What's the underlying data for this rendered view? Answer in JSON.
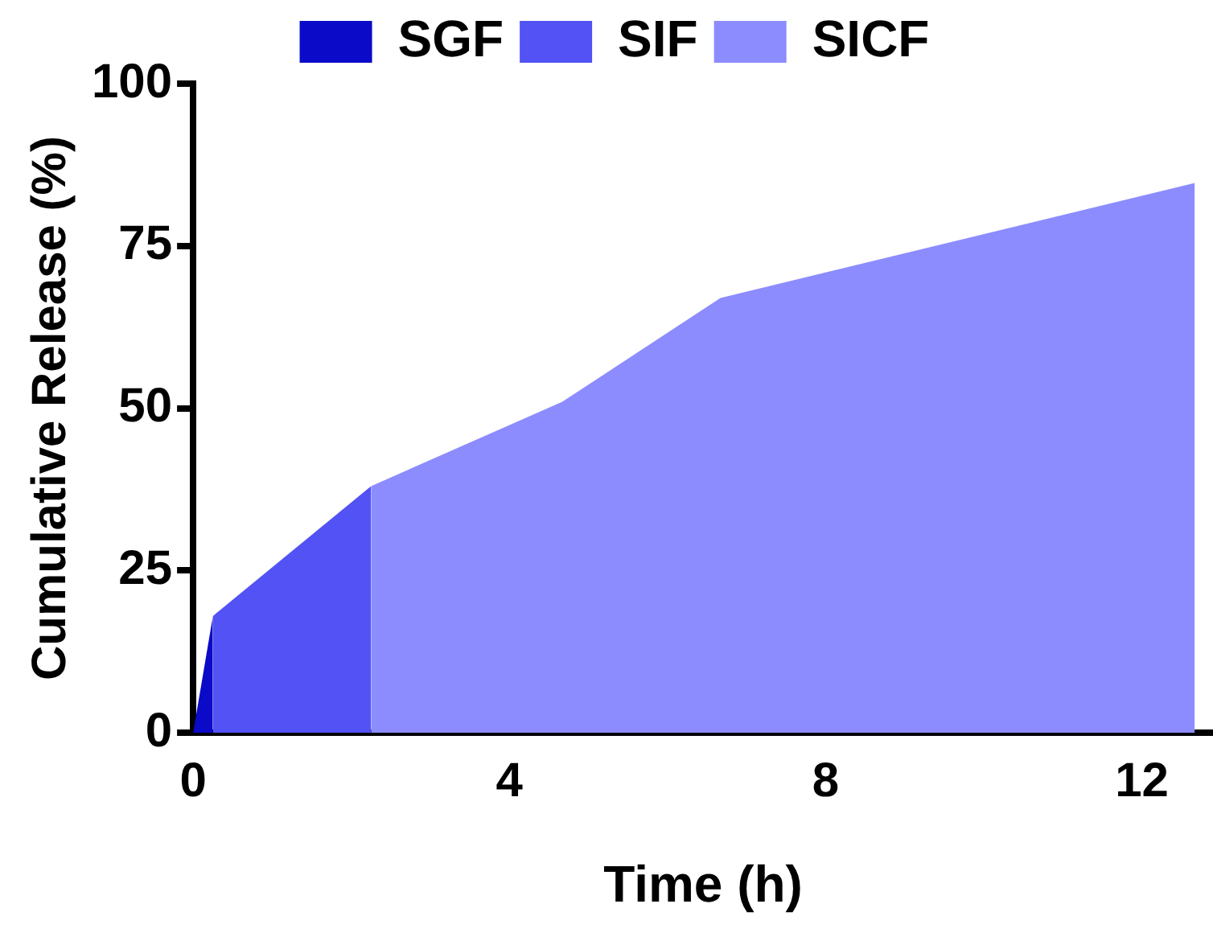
{
  "chart_data": {
    "type": "area",
    "xlabel": "Time (h)",
    "ylabel": "Cumulative Release (%)",
    "xlim": [
      0,
      12.9
    ],
    "xticks": [
      0,
      4,
      8,
      12
    ],
    "ylim": [
      0,
      100
    ],
    "yticks": [
      0,
      25,
      50,
      75,
      100
    ],
    "grid": false,
    "legend": "top",
    "series": [
      {
        "name": "SGF",
        "color": "#0a0ac8",
        "x": [
          0,
          0.25
        ],
        "values": [
          0,
          18
        ]
      },
      {
        "name": "SIF",
        "color": "#5252f5",
        "x": [
          0.25,
          2.25
        ],
        "values": [
          18,
          38
        ]
      },
      {
        "name": "SICF",
        "color": "#8c8cff",
        "x": [
          2.25,
          4.67,
          6.67,
          12.67
        ],
        "values": [
          38,
          51,
          67,
          84.7
        ]
      }
    ]
  }
}
